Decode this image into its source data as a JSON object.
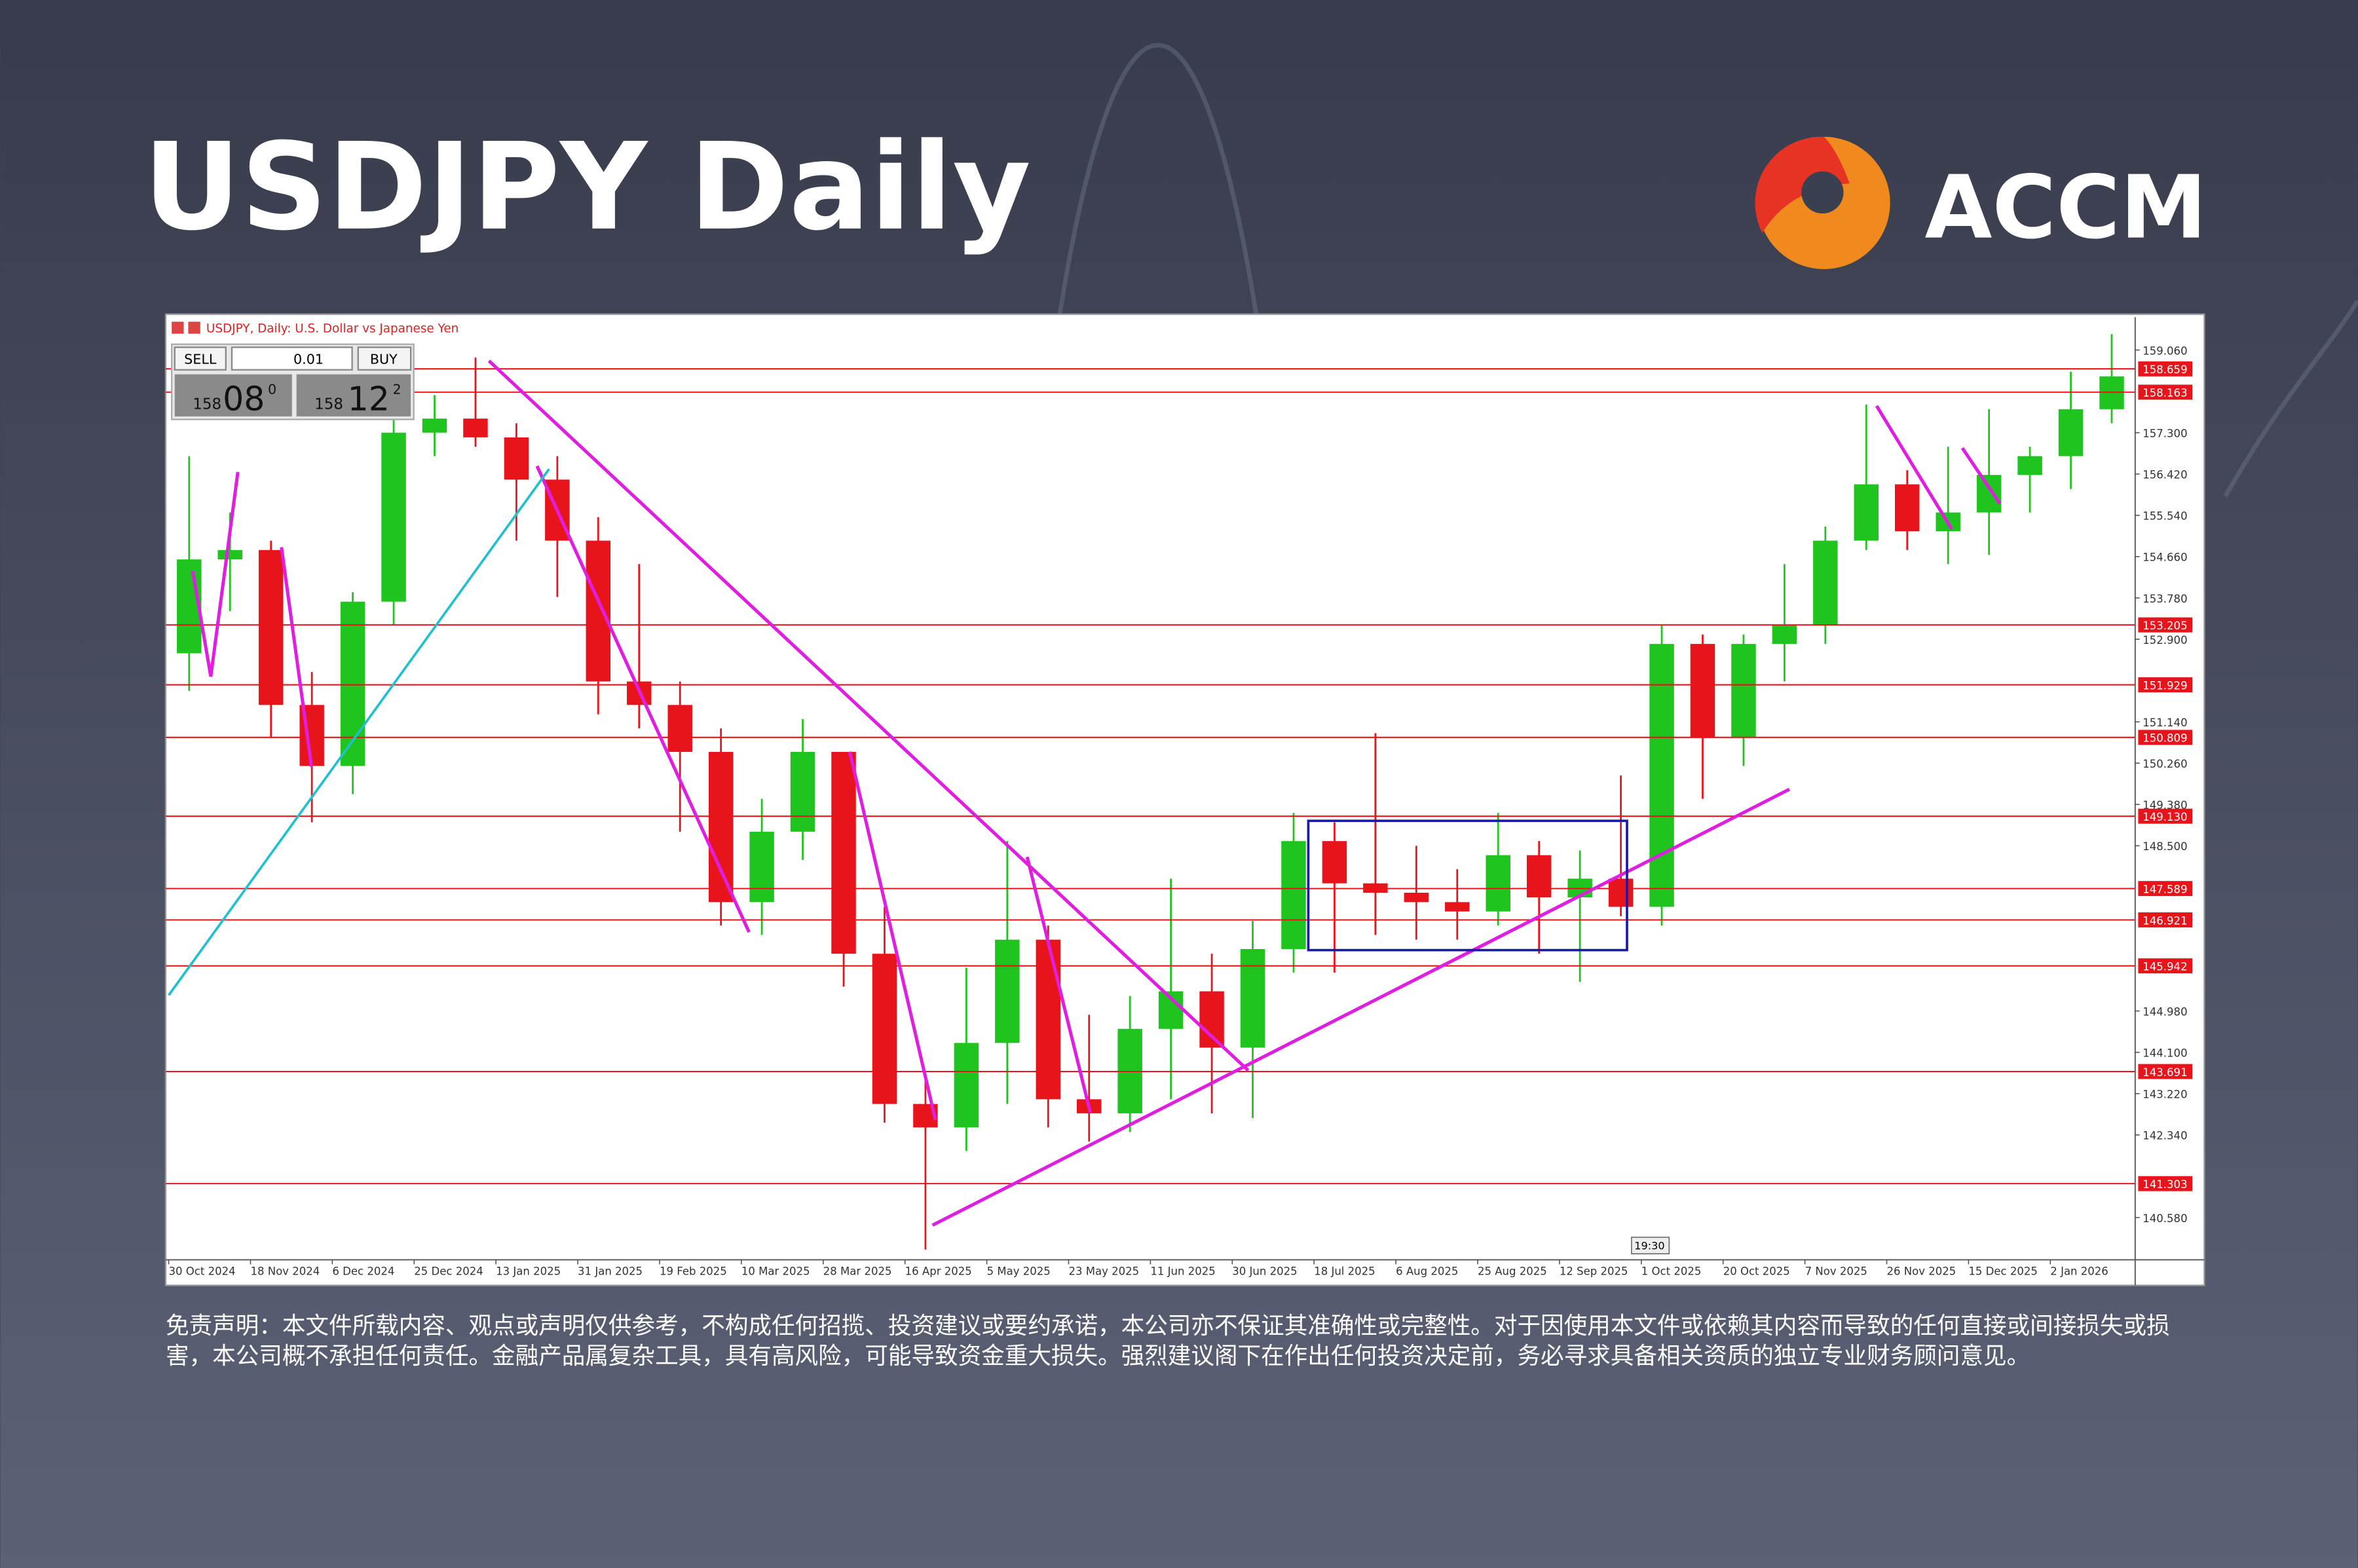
{
  "header": {
    "title": "USDJPY Daily",
    "brand": "ACCM"
  },
  "trade_panel": {
    "sell": "SELL",
    "lot": "0.01",
    "buy": "BUY",
    "sell_big": "158",
    "sell_pips": "08",
    "sell_frac": "0",
    "buy_big": "158",
    "buy_pips": "12",
    "buy_frac": "2"
  },
  "time_marker": "19:30",
  "disclaimer": "免责声明：本文件所载内容、观点或声明仅供参考，不构成任何招揽、投资建议或要约承诺，本公司亦不保证其准确性或完整性。对于因使用本文件或依赖其内容而导致的任何直接或间接损失或损害，本公司概不承担任何责任。金融产品属复杂工具，具有高风险，可能导致资金重大损失。强烈建议阁下在作出任何投资决定前，务必寻求具备相关资质的独立专业财务顾问意见。",
  "chart_data": {
    "type": "candlestick",
    "title": "USDJPY, Daily:  U.S. Dollar vs Japanese Yen",
    "up_color": "#1fc41f",
    "down_color": "#e8141b",
    "level_color": "#e8141b",
    "categories": [
      "30 Oct 2024",
      null,
      "18 Nov 2024",
      null,
      "6 Dec 2024",
      null,
      "25 Dec 2024",
      null,
      "13 Jan 2025",
      null,
      "31 Jan 2025",
      null,
      "19 Feb 2025",
      null,
      "10 Mar 2025",
      null,
      "28 Mar 2025",
      null,
      "16 Apr 2025",
      null,
      "5 May 2025",
      null,
      "23 May 2025",
      null,
      "11 Jun 2025",
      null,
      "30 Jun 2025",
      null,
      "18 Jul 2025",
      null,
      "6 Aug 2025",
      null,
      "25 Aug 2025",
      null,
      "12 Sep 2025",
      null,
      "1 Oct 2025",
      null,
      "20 Oct 2025",
      null,
      "7 Nov 2025",
      null,
      "26 Nov 2025",
      null,
      "15 Dec 2025",
      null,
      "2 Jan 2026",
      null
    ],
    "ohlc": [
      [
        152.6,
        156.8,
        151.8,
        154.6
      ],
      [
        154.6,
        155.6,
        153.5,
        154.8
      ],
      [
        154.8,
        155.0,
        150.8,
        151.5
      ],
      [
        151.5,
        152.2,
        149.0,
        150.2
      ],
      [
        150.2,
        153.9,
        149.6,
        153.7
      ],
      [
        153.7,
        158.0,
        153.2,
        157.3
      ],
      [
        157.3,
        158.1,
        156.8,
        157.6
      ],
      [
        157.6,
        158.9,
        157.0,
        157.2
      ],
      [
        157.2,
        157.5,
        155.0,
        156.3
      ],
      [
        156.3,
        156.8,
        153.8,
        155.0
      ],
      [
        155.0,
        155.5,
        151.3,
        152.0
      ],
      [
        152.0,
        154.5,
        151.0,
        151.5
      ],
      [
        151.5,
        152.0,
        148.8,
        150.5
      ],
      [
        150.5,
        151.0,
        146.8,
        147.3
      ],
      [
        147.3,
        149.5,
        146.6,
        148.8
      ],
      [
        148.8,
        151.2,
        148.2,
        150.5
      ],
      [
        150.5,
        150.5,
        145.5,
        146.2
      ],
      [
        146.2,
        147.2,
        142.6,
        143.0
      ],
      [
        143.0,
        143.5,
        139.9,
        142.5
      ],
      [
        142.5,
        145.9,
        142.0,
        144.3
      ],
      [
        144.3,
        148.6,
        143.0,
        146.5
      ],
      [
        146.5,
        146.8,
        142.5,
        143.1
      ],
      [
        143.1,
        144.9,
        142.2,
        142.8
      ],
      [
        142.8,
        145.3,
        142.4,
        144.6
      ],
      [
        144.6,
        147.8,
        143.1,
        145.4
      ],
      [
        145.4,
        146.2,
        142.8,
        144.2
      ],
      [
        144.2,
        146.9,
        142.7,
        146.3
      ],
      [
        146.3,
        149.2,
        145.8,
        148.6
      ],
      [
        148.6,
        149.0,
        145.8,
        147.7
      ],
      [
        147.7,
        150.9,
        146.6,
        147.5
      ],
      [
        147.5,
        148.5,
        146.5,
        147.3
      ],
      [
        147.3,
        148.0,
        146.5,
        147.1
      ],
      [
        147.1,
        149.2,
        146.8,
        148.3
      ],
      [
        148.3,
        148.6,
        146.2,
        147.4
      ],
      [
        147.4,
        148.4,
        145.6,
        147.8
      ],
      [
        147.8,
        150.0,
        147.0,
        147.2
      ],
      [
        147.2,
        153.2,
        146.8,
        152.8
      ],
      [
        152.8,
        153.0,
        149.5,
        150.8
      ],
      [
        150.8,
        153.0,
        150.2,
        152.8
      ],
      [
        152.8,
        154.5,
        152.0,
        153.2
      ],
      [
        153.2,
        155.3,
        152.8,
        155.0
      ],
      [
        155.0,
        157.9,
        154.8,
        156.2
      ],
      [
        156.2,
        156.5,
        154.8,
        155.2
      ],
      [
        155.2,
        157.0,
        154.5,
        155.6
      ],
      [
        155.6,
        157.8,
        154.7,
        156.4
      ],
      [
        156.4,
        157.0,
        155.6,
        156.8
      ],
      [
        156.8,
        158.6,
        156.1,
        157.8
      ],
      [
        157.8,
        159.4,
        157.5,
        158.5
      ]
    ],
    "ylim": [
      139.68,
      159.76
    ],
    "yticks": [
      {
        "value": 159.06,
        "label": "159.060"
      },
      {
        "value": 157.3,
        "label": "157.300"
      },
      {
        "value": 156.42,
        "label": "156.420"
      },
      {
        "value": 155.54,
        "label": "155.540"
      },
      {
        "value": 154.66,
        "label": "154.660"
      },
      {
        "value": 153.78,
        "label": "153.780"
      },
      {
        "value": 152.9,
        "label": "152.900"
      },
      {
        "value": 151.14,
        "label": "151.140"
      },
      {
        "value": 150.26,
        "label": "150.260"
      },
      {
        "value": 149.38,
        "label": "149.380"
      },
      {
        "value": 148.5,
        "label": "148.500"
      },
      {
        "value": 144.98,
        "label": "144.980"
      },
      {
        "value": 144.1,
        "label": "144.100"
      },
      {
        "value": 143.22,
        "label": "143.220"
      },
      {
        "value": 142.34,
        "label": "142.340"
      },
      {
        "value": 140.58,
        "label": "140.580"
      }
    ],
    "levels": [
      158.659,
      158.163,
      153.205,
      151.929,
      150.809,
      {
        "value": 149.13,
        "label": "149.130"
      },
      147.589,
      146.921,
      145.942,
      143.691,
      141.303
    ]
  }
}
